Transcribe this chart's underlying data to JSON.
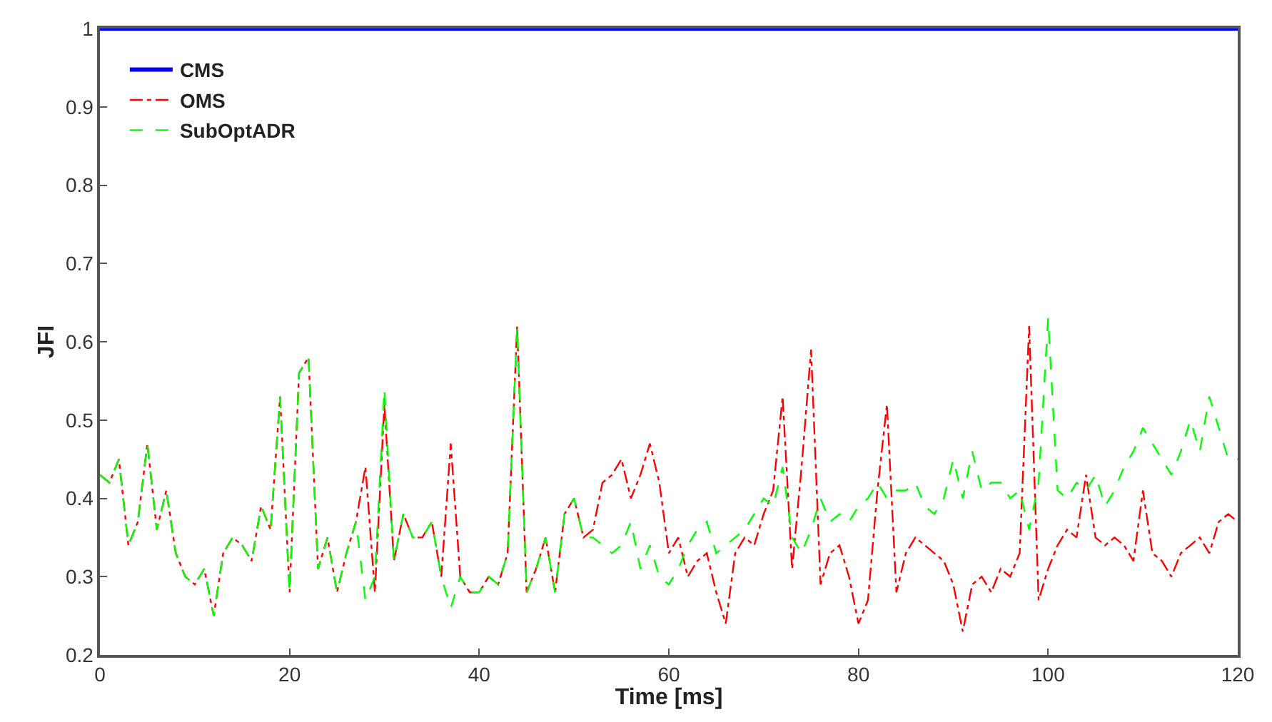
{
  "chart_data": {
    "type": "line",
    "xlabel": "Time [ms]",
    "ylabel": "JFI",
    "x": [
      0,
      1,
      2,
      3,
      4,
      5,
      6,
      7,
      8,
      9,
      10,
      11,
      12,
      13,
      14,
      15,
      16,
      17,
      18,
      19,
      20,
      21,
      22,
      23,
      24,
      25,
      26,
      27,
      28,
      29,
      30,
      31,
      32,
      33,
      34,
      35,
      36,
      37,
      38,
      39,
      40,
      41,
      42,
      43,
      44,
      45,
      46,
      47,
      48,
      49,
      50,
      51,
      52,
      53,
      54,
      55,
      56,
      57,
      58,
      59,
      60,
      61,
      62,
      63,
      64,
      65,
      66,
      67,
      68,
      69,
      70,
      71,
      72,
      73,
      74,
      75,
      76,
      77,
      78,
      79,
      80,
      81,
      82,
      83,
      84,
      85,
      86,
      87,
      88,
      89,
      90,
      91,
      92,
      93,
      94,
      95,
      96,
      97,
      98,
      99,
      100,
      101,
      102,
      103,
      104,
      105,
      106,
      107,
      108,
      109,
      110,
      111,
      112,
      113,
      114,
      115,
      116,
      117,
      118,
      119,
      120
    ],
    "series": [
      {
        "name": "CMS",
        "color": "#0000ff",
        "line_style": "solid",
        "x": [
          0,
          120
        ],
        "values": [
          1,
          1
        ]
      },
      {
        "name": "OMS",
        "color": "#ff0000",
        "line_style": "dashdot",
        "values": [
          0.43,
          0.42,
          0.45,
          0.34,
          0.37,
          0.47,
          0.36,
          0.41,
          0.33,
          0.3,
          0.29,
          0.31,
          0.25,
          0.33,
          0.35,
          0.34,
          0.32,
          0.39,
          0.36,
          0.53,
          0.28,
          0.56,
          0.58,
          0.31,
          0.35,
          0.28,
          0.33,
          0.37,
          0.44,
          0.28,
          0.52,
          0.32,
          0.38,
          0.35,
          0.35,
          0.37,
          0.3,
          0.47,
          0.3,
          0.28,
          0.28,
          0.3,
          0.29,
          0.33,
          0.62,
          0.28,
          0.31,
          0.35,
          0.28,
          0.38,
          0.4,
          0.35,
          0.36,
          0.42,
          0.43,
          0.45,
          0.4,
          0.43,
          0.47,
          0.42,
          0.33,
          0.35,
          0.3,
          0.32,
          0.33,
          0.28,
          0.24,
          0.33,
          0.35,
          0.34,
          0.38,
          0.41,
          0.53,
          0.31,
          0.44,
          0.59,
          0.29,
          0.33,
          0.34,
          0.3,
          0.24,
          0.27,
          0.41,
          0.52,
          0.28,
          0.33,
          0.35,
          0.34,
          0.33,
          0.32,
          0.29,
          0.23,
          0.29,
          0.3,
          0.28,
          0.31,
          0.3,
          0.33,
          0.62,
          0.27,
          0.31,
          0.34,
          0.36,
          0.35,
          0.43,
          0.35,
          0.34,
          0.35,
          0.34,
          0.32,
          0.41,
          0.33,
          0.32,
          0.3,
          0.33,
          0.34,
          0.35,
          0.33,
          0.37,
          0.38,
          0.37
        ]
      },
      {
        "name": "SubOptADR",
        "color": "#00ff00",
        "line_style": "dashed",
        "values": [
          0.43,
          0.42,
          0.45,
          0.34,
          0.37,
          0.47,
          0.36,
          0.41,
          0.33,
          0.3,
          0.29,
          0.31,
          0.25,
          0.33,
          0.35,
          0.34,
          0.32,
          0.39,
          0.36,
          0.53,
          0.28,
          0.56,
          0.58,
          0.31,
          0.35,
          0.28,
          0.33,
          0.37,
          0.27,
          0.3,
          0.54,
          0.32,
          0.38,
          0.35,
          0.35,
          0.37,
          0.3,
          0.26,
          0.3,
          0.28,
          0.28,
          0.3,
          0.29,
          0.33,
          0.62,
          0.28,
          0.31,
          0.35,
          0.28,
          0.38,
          0.4,
          0.35,
          0.35,
          0.34,
          0.33,
          0.34,
          0.37,
          0.31,
          0.34,
          0.3,
          0.29,
          0.31,
          0.34,
          0.36,
          0.37,
          0.33,
          0.34,
          0.35,
          0.36,
          0.38,
          0.4,
          0.39,
          0.44,
          0.35,
          0.33,
          0.36,
          0.4,
          0.37,
          0.38,
          0.37,
          0.39,
          0.4,
          0.42,
          0.4,
          0.41,
          0.41,
          0.42,
          0.39,
          0.38,
          0.4,
          0.45,
          0.4,
          0.46,
          0.41,
          0.42,
          0.42,
          0.4,
          0.41,
          0.36,
          0.42,
          0.63,
          0.41,
          0.4,
          0.42,
          0.41,
          0.43,
          0.39,
          0.41,
          0.44,
          0.46,
          0.49,
          0.47,
          0.45,
          0.43,
          0.46,
          0.5,
          0.46,
          0.53,
          0.49,
          0.45,
          0.45
        ]
      }
    ],
    "xlim": [
      0,
      120
    ],
    "xticks": [
      0,
      20,
      40,
      60,
      80,
      100,
      120
    ],
    "ylim": [
      0.2,
      1
    ],
    "yticks": [
      0.2,
      0.3,
      0.4,
      0.5,
      0.6,
      0.7,
      0.8,
      0.9,
      1
    ],
    "legend": "top left"
  }
}
